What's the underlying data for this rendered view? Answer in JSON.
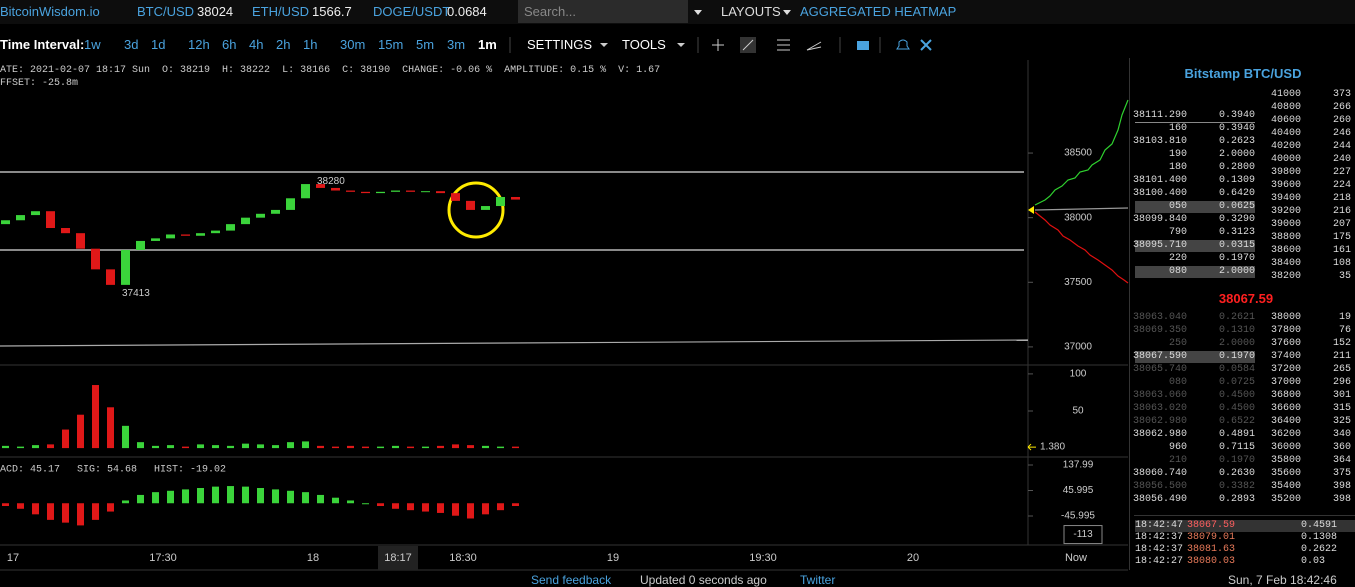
{
  "header": {
    "brand": "BitcoinWisdom.io",
    "tickers": [
      {
        "pair": "BTC/USD",
        "price": "38024"
      },
      {
        "pair": "ETH/USD",
        "price": "1566.7"
      },
      {
        "pair": "DOGE/USDT",
        "price": "0.0684"
      }
    ],
    "search_placeholder": "Search...",
    "menu": [
      "LAYOUTS",
      "AGGREGATED HEATMAP"
    ]
  },
  "toolbar": {
    "label": "Time Interval:",
    "intervals": [
      "1w",
      "3d",
      "1d",
      "12h",
      "6h",
      "4h",
      "2h",
      "1h",
      "30m",
      "15m",
      "5m",
      "3m",
      "1m"
    ],
    "menus": [
      "SETTINGS",
      "TOOLS"
    ]
  },
  "info": {
    "items": [
      "ATE: 2021-02-07 18:17 Sun",
      "O: 38219",
      "H: 38222",
      "L: 38166",
      "C: 38190",
      "CHANGE: -0.06 %",
      "AMPLITUDE: 0.15 %",
      "V: 1.67"
    ],
    "offset": "FFSET: -25.8m"
  },
  "chart": {
    "type": "candlestick",
    "open": [
      37950,
      37980,
      38020,
      38050,
      37920,
      37880,
      37760,
      37600,
      37480,
      37750,
      37820,
      37840,
      37870,
      37860,
      37880,
      37900,
      37950,
      38000,
      38030,
      38060,
      38150,
      38260,
      38230,
      38210,
      38200,
      38190,
      38200,
      38210,
      38200,
      38205,
      38190,
      38130,
      38060,
      38090,
      38160
    ],
    "close": [
      37980,
      38020,
      38050,
      37920,
      37880,
      37760,
      37600,
      37480,
      37750,
      37820,
      37840,
      37870,
      37860,
      37880,
      37900,
      37950,
      38000,
      38030,
      38060,
      38150,
      38260,
      38230,
      38210,
      38200,
      38190,
      38200,
      38210,
      38200,
      38205,
      38190,
      38130,
      38060,
      38090,
      38160,
      38140
    ],
    "ylim": [
      36860,
      39220
    ],
    "yticks": [
      38500,
      38000,
      37500,
      37000
    ],
    "high_label": 38280,
    "low_label": 37413,
    "volume": {
      "values": [
        3,
        2,
        4,
        5,
        25,
        45,
        85,
        55,
        30,
        8,
        3,
        4,
        2,
        5,
        4,
        3,
        6,
        5,
        4,
        8,
        9,
        3,
        2,
        3,
        2,
        2,
        3,
        2,
        2,
        3,
        5,
        4,
        3,
        2,
        2
      ],
      "ylim": [
        -12,
        112
      ],
      "yticks": [
        100,
        50
      ],
      "current": {
        "value": 1.38,
        "label": "1.380"
      }
    },
    "macd": {
      "legend": [
        "ACD: 45.17",
        "SIG: 54.68",
        "HIST: -19.02"
      ],
      "hist": [
        -10,
        -20,
        -40,
        -60,
        -70,
        -80,
        -60,
        -30,
        10,
        30,
        40,
        45,
        50,
        55,
        60,
        62,
        60,
        55,
        50,
        45,
        40,
        30,
        20,
        10,
        0,
        -10,
        -20,
        -25,
        -30,
        -35,
        -45,
        -55,
        -40,
        -25,
        -10
      ],
      "ylim": [
        -150.7,
        166.9
      ],
      "yticks": [
        137.99,
        45.995,
        -45.995
      ],
      "current": -113
    },
    "time_labels": [
      "17",
      "17:30",
      "18",
      "18:17",
      "18:30",
      "19",
      "19:30",
      "20"
    ],
    "now_label": "Now"
  },
  "orderbook": {
    "title": "Bitstamp BTC/USD",
    "asks": [
      [
        "38111.290",
        "0.3940"
      ],
      [
        "160",
        "0.3940"
      ],
      [
        "38103.810",
        "0.2623"
      ],
      [
        "190",
        "2.0000"
      ],
      [
        "180",
        "0.2800"
      ],
      [
        "38101.400",
        "0.1309"
      ],
      [
        "38100.400",
        "0.6420"
      ],
      [
        "050",
        "0.0625"
      ],
      [
        "38099.840",
        "0.3290"
      ],
      [
        "790",
        "0.3123"
      ],
      [
        "38095.710",
        "0.0315"
      ],
      [
        "220",
        "0.1970"
      ],
      [
        "080",
        "2.0000"
      ]
    ],
    "mid": "38067.59",
    "bids": [
      [
        "38063.040",
        "0.2621"
      ],
      [
        "38069.350",
        "0.1310"
      ],
      [
        "250",
        "2.0000"
      ],
      [
        "38067.590",
        "0.1970"
      ],
      [
        "38065.740",
        "0.0584"
      ],
      [
        "080",
        "0.0725"
      ],
      [
        "38063.060",
        "0.4500"
      ],
      [
        "38063.020",
        "0.4500"
      ],
      [
        "38062.980",
        "0.6522"
      ],
      [
        "38062.980",
        "0.4891"
      ],
      [
        "960",
        "0.7115"
      ],
      [
        "210",
        "0.1970"
      ],
      [
        "38060.740",
        "0.2630"
      ],
      [
        "38056.500",
        "0.3382"
      ],
      [
        "38056.490",
        "0.2893"
      ]
    ],
    "levels_upper": [
      [
        41000,
        373
      ],
      [
        40800,
        266
      ],
      [
        40600,
        260
      ],
      [
        40400,
        246
      ],
      [
        40200,
        244
      ],
      [
        40000,
        240
      ],
      [
        39800,
        227
      ],
      [
        39600,
        224
      ],
      [
        39400,
        218
      ],
      [
        39200,
        216
      ],
      [
        39000,
        207
      ],
      [
        38800,
        175
      ],
      [
        38600,
        161
      ],
      [
        38400,
        108
      ],
      [
        38200,
        35
      ]
    ],
    "levels_lower": [
      [
        38000,
        19
      ],
      [
        37800,
        76
      ],
      [
        37600,
        152
      ],
      [
        37400,
        211
      ],
      [
        37200,
        265
      ],
      [
        37000,
        296
      ],
      [
        36800,
        301
      ],
      [
        36600,
        315
      ],
      [
        36400,
        325
      ],
      [
        36200,
        340
      ],
      [
        36000,
        360
      ],
      [
        35800,
        364
      ],
      [
        35600,
        375
      ],
      [
        35400,
        398
      ],
      [
        35200,
        398
      ]
    ],
    "trades": [
      [
        "18:42:47",
        "38067.59",
        "0.4591"
      ],
      [
        "18:42:37",
        "38079.01",
        "0.1308"
      ],
      [
        "18:42:37",
        "38081.63",
        "0.2622"
      ],
      [
        "18:42:27",
        "38080.03",
        "0.03"
      ]
    ]
  },
  "footer": {
    "links": [
      "Send feedback",
      "Updated 0 seconds ago",
      "Twitter"
    ],
    "clock": "Sun, 7 Feb 18:42:46"
  }
}
